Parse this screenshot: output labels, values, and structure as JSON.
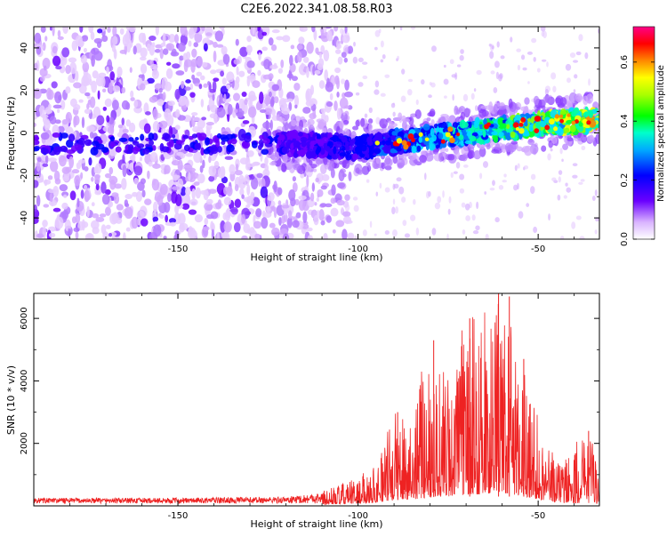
{
  "title": "C2E6.2022.341.08.58.R03",
  "chart_data": [
    {
      "type": "heatmap",
      "xlabel": "Height of straight line (km)",
      "ylabel": "Frequency (Hz)",
      "xlim": [
        -190,
        -33
      ],
      "ylim": [
        -50,
        50
      ],
      "x_ticks": [
        -150,
        -100,
        -50
      ],
      "y_ticks": [
        -40,
        -20,
        0,
        20,
        40
      ],
      "x_tick_labels": [
        "-150",
        "-100",
        "-50"
      ],
      "y_tick_labels": [
        "-40",
        "-20",
        "0",
        "20",
        "40"
      ],
      "colorbar": {
        "label": "Normalized spectral amplitude",
        "range": [
          0.0,
          0.72
        ],
        "ticks": [
          0.0,
          0.2,
          0.4,
          0.6
        ],
        "tick_labels": [
          "0.0",
          "0.2",
          "0.4",
          "0.6"
        ],
        "colormap": [
          "#ffffff",
          "#6a00ff",
          "#0000ff",
          "#00ffff",
          "#00ff00",
          "#ffff00",
          "#ff0000",
          "#ff00aa"
        ]
      },
      "ridge": {
        "description_points": [
          [
            -120,
            -5
          ],
          [
            -100,
            -7
          ],
          [
            -80,
            -2
          ],
          [
            -60,
            2
          ],
          [
            -45,
            5
          ],
          [
            -35,
            6
          ]
        ]
      },
      "noise_region_end_km": -105
    },
    {
      "type": "line",
      "xlabel": "Height of straight line (km)",
      "ylabel": "SNR (10 * v/v)",
      "xlim": [
        -190,
        -33
      ],
      "ylim": [
        0,
        6800
      ],
      "x_ticks": [
        -150,
        -100,
        -50
      ],
      "y_ticks": [
        2000,
        4000,
        6000
      ],
      "x_tick_labels": [
        "-150",
        "-100",
        "-50"
      ],
      "y_tick_labels": [
        "2000",
        "4000",
        "6000"
      ],
      "color": "#ee2222",
      "envelope": {
        "x": [
          -190,
          -150,
          -120,
          -110,
          -105,
          -100,
          -95,
          -90,
          -85,
          -80,
          -75,
          -70,
          -65,
          -60,
          -55,
          -50,
          -45,
          -40,
          -35,
          -33
        ],
        "max": [
          300,
          300,
          350,
          500,
          700,
          900,
          1400,
          3000,
          3200,
          5300,
          4300,
          6000,
          6200,
          6700,
          4800,
          3000,
          1500,
          2000,
          2400,
          800
        ],
        "base": [
          100,
          100,
          120,
          150,
          200,
          250,
          350,
          600,
          700,
          900,
          1000,
          1200,
          1300,
          1400,
          1100,
          700,
          400,
          300,
          300,
          250
        ]
      },
      "peaks": [
        {
          "x": -89,
          "y": 3000
        },
        {
          "x": -79,
          "y": 5300
        },
        {
          "x": -69,
          "y": 6000
        },
        {
          "x": -61,
          "y": 6800
        },
        {
          "x": -58,
          "y": 6700
        },
        {
          "x": -54,
          "y": 4700
        },
        {
          "x": -36,
          "y": 2400
        }
      ]
    }
  ]
}
